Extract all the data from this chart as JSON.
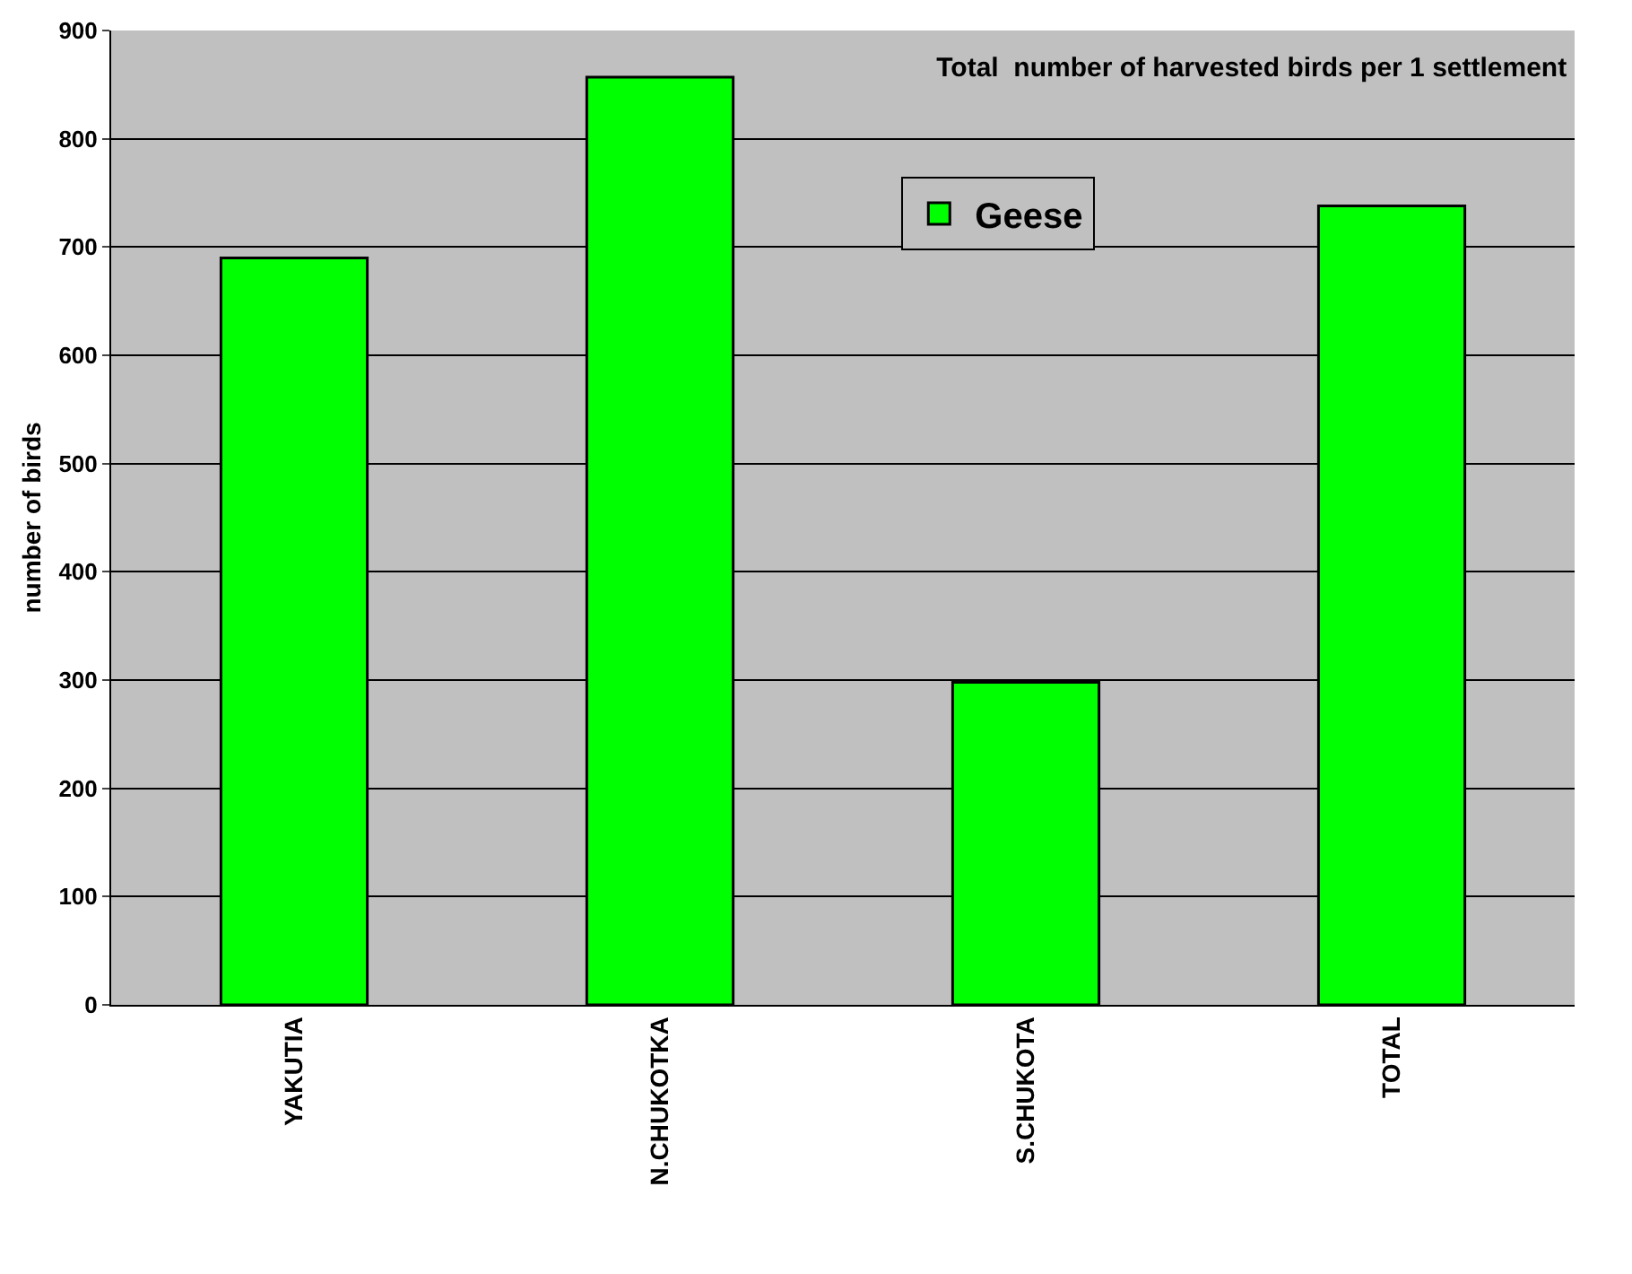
{
  "chart_data": {
    "type": "bar",
    "title": "Total  number of harvested birds per 1 settlement",
    "ylabel": "number of birds",
    "categories": [
      "YAKUTIA",
      "N.CHUKOTKA",
      "S.CHUKOTA",
      "TOTAL"
    ],
    "series": [
      {
        "name": "Geese",
        "color": "#00ff00",
        "values": [
          690,
          857,
          298,
          738
        ]
      }
    ],
    "ylim": [
      0,
      900
    ],
    "yticks": [
      0,
      100,
      200,
      300,
      400,
      500,
      600,
      700,
      800,
      900
    ],
    "grid": "y",
    "legend": "top right"
  }
}
